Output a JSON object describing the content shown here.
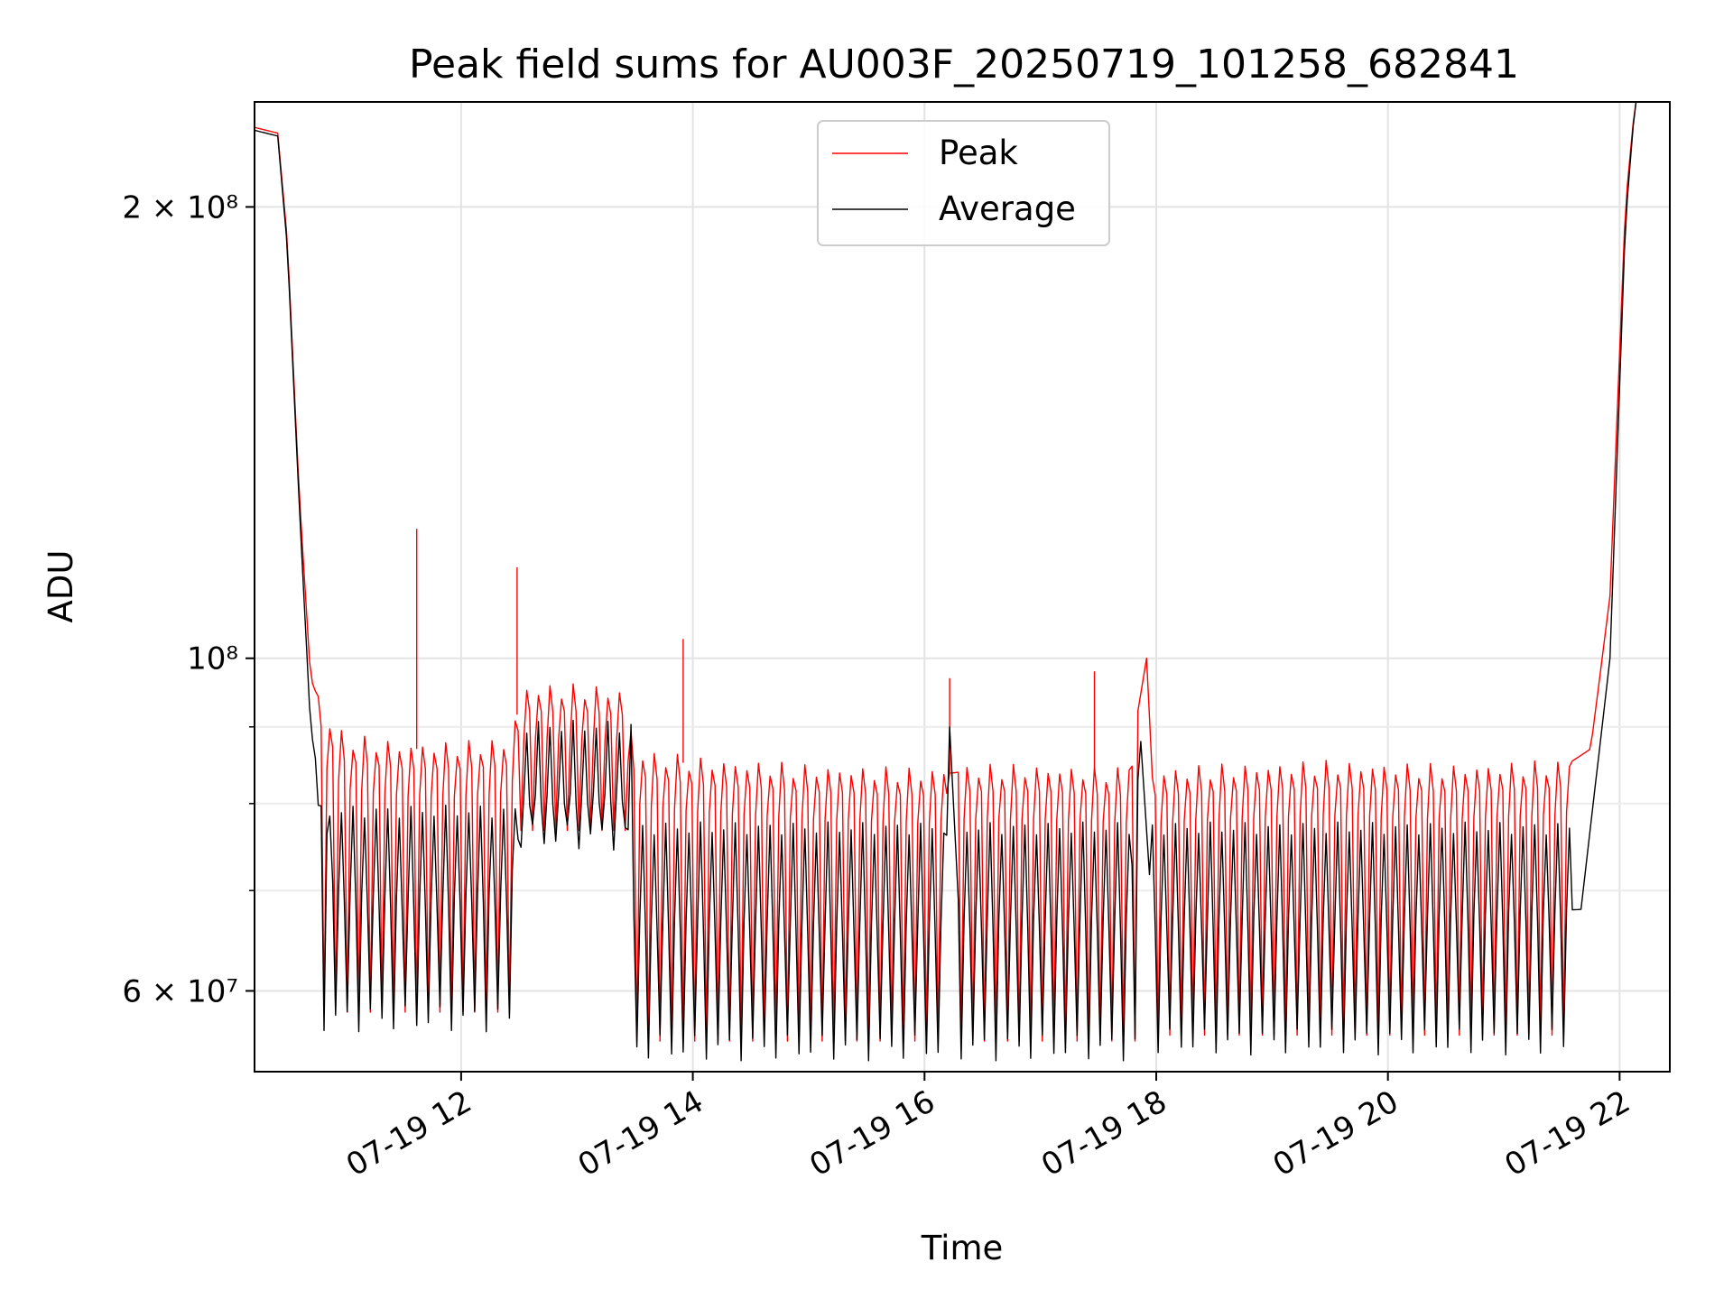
{
  "chart_data": {
    "type": "line",
    "title": "Peak field sums for AU003F_20250719_101258_682841",
    "xlabel": "Time",
    "ylabel": "ADU",
    "yscale": "log",
    "xlim": [
      "2025-07-19T10:13",
      "2025-07-19T22:26"
    ],
    "ylim": [
      53000000,
      235000000
    ],
    "grid": true,
    "legend_position": "upper center",
    "x_tick_labels": [
      "07-19 12",
      "07-19 14",
      "07-19 16",
      "07-19 18",
      "07-19 20",
      "07-19 22"
    ],
    "x_tick_values": [
      "2025-07-19T12:00",
      "2025-07-19T14:00",
      "2025-07-19T16:00",
      "2025-07-19T18:00",
      "2025-07-19T20:00",
      "2025-07-19T22:00"
    ],
    "y_tick_labels": [
      "6 × 10⁷",
      "10⁸",
      "2 × 10⁸"
    ],
    "y_tick_values": [
      60000000,
      100000000,
      200000000
    ],
    "y_minor_ticks": [
      70000000,
      80000000,
      90000000
    ],
    "series": [
      {
        "name": "Peak",
        "color": "#ff0000",
        "points": [
          [
            "2025-07-19T10:13",
            226000000
          ],
          [
            "2025-07-19T10:25",
            224000000
          ],
          [
            "2025-07-19T10:30",
            190000000
          ],
          [
            "2025-07-19T10:36",
            130000000
          ],
          [
            "2025-07-19T10:42",
            97000000
          ],
          [
            "2025-07-19T10:50",
            91000000
          ],
          [
            "2025-07-19T11:00",
            88000000
          ],
          [
            "2025-07-19T11:30",
            87000000
          ],
          [
            "2025-07-19T12:00",
            87000000
          ],
          [
            "2025-07-19T12:25",
            87500000
          ],
          [
            "2025-07-19T12:32",
            95000000
          ],
          [
            "2025-07-19T13:00",
            95000000
          ],
          [
            "2025-07-19T13:25",
            94500000
          ],
          [
            "2025-07-19T13:30",
            86000000
          ],
          [
            "2025-07-19T14:00",
            85000000
          ],
          [
            "2025-07-19T15:00",
            84000000
          ],
          [
            "2025-07-19T16:00",
            83500000
          ],
          [
            "2025-07-19T16:20",
            84000000
          ],
          [
            "2025-07-19T17:00",
            84000000
          ],
          [
            "2025-07-19T17:45",
            83500000
          ],
          [
            "2025-07-19T17:55",
            100000000
          ],
          [
            "2025-07-19T17:58",
            83500000
          ],
          [
            "2025-07-19T18:30",
            84000000
          ],
          [
            "2025-07-19T19:30",
            84500000
          ],
          [
            "2025-07-19T20:30",
            84000000
          ],
          [
            "2025-07-19T21:30",
            84500000
          ],
          [
            "2025-07-19T21:45",
            87000000
          ],
          [
            "2025-07-19T21:55",
            110000000
          ],
          [
            "2025-07-19T22:03",
            200000000
          ],
          [
            "2025-07-19T22:08",
            235000000
          ],
          [
            "2025-07-19T22:26",
            235000000
          ]
        ],
        "spikes": [
          [
            "2025-07-19T11:37",
            122000000
          ],
          [
            "2025-07-19T12:29",
            115000000
          ],
          [
            "2025-07-19T13:55",
            103000000
          ],
          [
            "2025-07-19T16:13",
            97000000
          ],
          [
            "2025-07-19T17:28",
            98000000
          ]
        ]
      },
      {
        "name": "Average",
        "color": "#000000",
        "points": [
          [
            "2025-07-19T10:13",
            225000000
          ],
          [
            "2025-07-19T10:25",
            223000000
          ],
          [
            "2025-07-19T10:30",
            188000000
          ],
          [
            "2025-07-19T10:36",
            128000000
          ],
          [
            "2025-07-19T10:42",
            90000000
          ],
          [
            "2025-07-19T10:55",
            70000000
          ],
          [
            "2025-07-19T11:30",
            69000000
          ],
          [
            "2025-07-19T12:25",
            70000000
          ],
          [
            "2025-07-19T12:32",
            81000000
          ],
          [
            "2025-07-19T13:25",
            81500000
          ],
          [
            "2025-07-19T13:30",
            67000000
          ],
          [
            "2025-07-19T15:00",
            66500000
          ],
          [
            "2025-07-19T16:10",
            66500000
          ],
          [
            "2025-07-19T16:13",
            90000000
          ],
          [
            "2025-07-19T16:18",
            67000000
          ],
          [
            "2025-07-19T17:45",
            67000000
          ],
          [
            "2025-07-19T17:52",
            88000000
          ],
          [
            "2025-07-19T17:58",
            67000000
          ],
          [
            "2025-07-19T20:00",
            67000000
          ],
          [
            "2025-07-19T21:40",
            68000000
          ],
          [
            "2025-07-19T21:55",
            100000000
          ],
          [
            "2025-07-19T22:03",
            195000000
          ],
          [
            "2025-07-19T22:08",
            235000000
          ],
          [
            "2025-07-19T22:26",
            235000000
          ]
        ]
      }
    ],
    "oscillation_bands": [
      {
        "start": "2025-07-19T10:45",
        "end": "2025-07-19T12:30",
        "average_low": 57500000,
        "average_high": 79000000
      },
      {
        "start": "2025-07-19T12:30",
        "end": "2025-07-19T13:28",
        "average_low": 76000000,
        "average_high": 90000000
      },
      {
        "start": "2025-07-19T13:28",
        "end": "2025-07-19T16:12",
        "average_low": 55000000,
        "average_high": 77000000
      },
      {
        "start": "2025-07-19T16:18",
        "end": "2025-07-19T17:50",
        "average_low": 55000000,
        "average_high": 77000000
      },
      {
        "start": "2025-07-19T17:58",
        "end": "2025-07-19T21:35",
        "average_low": 55500000,
        "average_high": 77000000
      }
    ]
  }
}
